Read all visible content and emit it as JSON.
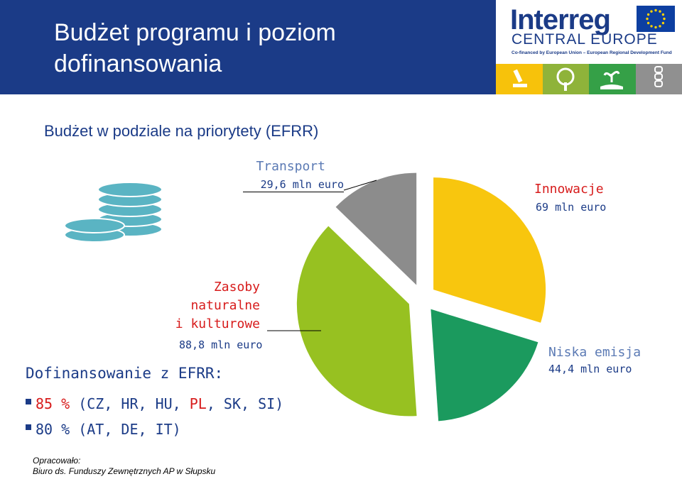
{
  "header": {
    "title": "Budżet programu i poziom dofinansowania"
  },
  "logo": {
    "word": "Interreg",
    "region": "CENTRAL EUROPE",
    "cofinanced": "Co-financed by European Union – European Regional Development Fund",
    "flag_icon": "eu-flag-icon",
    "tile_icons": [
      "microscope-icon",
      "tree-icon",
      "hand-plant-icon",
      "chain-icon"
    ],
    "tile_colors": [
      "#f7c20b",
      "#8fb33a",
      "#35a047",
      "#909090"
    ]
  },
  "chart_data": {
    "type": "pie",
    "title": "Budżet w podziale na priorytety (EFRR)",
    "exploded": true,
    "slices": [
      {
        "label": "Innowacje",
        "value_text": "69 mln euro",
        "value": 69,
        "color": "#f8c60e"
      },
      {
        "label": "Niska emisja",
        "value_text": "44,4 mln euro",
        "value": 44.4,
        "color": "#1b9a5e"
      },
      {
        "label": "Zasoby naturalne i kulturowe",
        "label_lines": [
          "Zasoby",
          "naturalne",
          "i kulturowe"
        ],
        "value_text": "88,8 mln euro",
        "value": 88.8,
        "color": "#97c121"
      },
      {
        "label": "Transport",
        "value_text": "29,6 mln euro",
        "value": 29.6,
        "color": "#8c8c8c"
      }
    ]
  },
  "colors": {
    "header_bg": "#1b3b87",
    "title_text": "#1b3b87",
    "label_blue": "#5b7ab4",
    "label_red": "#d71c1c",
    "coin": "#5ab4c3"
  },
  "coins_icon": "coin-stack-icon",
  "cofinancing": {
    "heading": "Dofinansowanie z EFRR:",
    "rows": [
      {
        "percent": "85 %",
        "open": " (CZ, HR, HU, ",
        "highlight": "PL",
        "rest": ", SK, SI)"
      },
      {
        "percent": "80 %",
        "open": " (AT, DE, IT)",
        "highlight": "",
        "rest": ""
      }
    ]
  },
  "footer": {
    "line1": "Opracowało:",
    "line2": "Biuro ds. Funduszy Zewnętrznych AP w Słupsku"
  }
}
